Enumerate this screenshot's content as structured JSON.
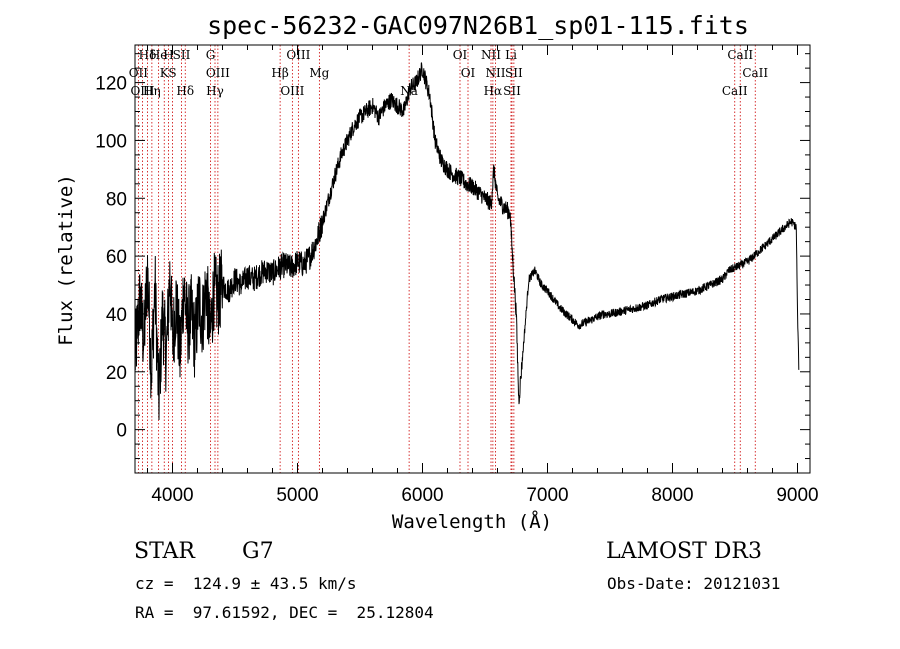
{
  "chart_data": {
    "type": "line",
    "title": "spec-56232-GAC097N26B1_sp01-115.fits",
    "xlabel": "Wavelength (Å)",
    "ylabel": "Flux (relative)",
    "xlim": [
      3700,
      9100
    ],
    "ylim": [
      -15,
      133
    ],
    "xticks": [
      4000,
      5000,
      6000,
      7000,
      8000,
      9000
    ],
    "yticks": [
      0,
      20,
      40,
      60,
      80,
      100,
      120
    ],
    "series": [
      {
        "name": "flux",
        "x": [
          3700,
          3740,
          3770,
          3800,
          3830,
          3860,
          3890,
          3920,
          3950,
          3980,
          4000,
          4030,
          4060,
          4090,
          4120,
          4150,
          4180,
          4210,
          4240,
          4270,
          4300,
          4330,
          4360,
          4400,
          4450,
          4500,
          4550,
          4600,
          4650,
          4700,
          4750,
          4800,
          4850,
          4900,
          4950,
          5000,
          5050,
          5100,
          5150,
          5200,
          5250,
          5300,
          5350,
          5400,
          5450,
          5500,
          5550,
          5600,
          5650,
          5700,
          5750,
          5800,
          5850,
          5900,
          5950,
          6000,
          6030,
          6060,
          6100,
          6150,
          6200,
          6250,
          6300,
          6350,
          6400,
          6450,
          6500,
          6550,
          6570,
          6600,
          6650,
          6700,
          6720,
          6750,
          6770,
          6800,
          6850,
          6900,
          6950,
          7000,
          7050,
          7100,
          7150,
          7200,
          7250,
          7300,
          7350,
          7400,
          7450,
          7500,
          7600,
          7700,
          7800,
          7900,
          8000,
          8100,
          8200,
          8300,
          8400,
          8450,
          8500,
          8550,
          8600,
          8650,
          8700,
          8750,
          8800,
          8850,
          8900,
          8950,
          8990,
          9000,
          9010
        ],
        "y": [
          25,
          45,
          30,
          55,
          20,
          50,
          10,
          40,
          25,
          55,
          30,
          45,
          25,
          50,
          35,
          40,
          30,
          45,
          38,
          50,
          32,
          48,
          45,
          50,
          48,
          52,
          50,
          53,
          52,
          54,
          55,
          54,
          56,
          57,
          56,
          58,
          57,
          60,
          65,
          72,
          80,
          88,
          95,
          100,
          105,
          108,
          110,
          112,
          108,
          112,
          114,
          112,
          110,
          118,
          120,
          125,
          120,
          115,
          100,
          93,
          90,
          88,
          87,
          85,
          84,
          82,
          80,
          78,
          90,
          80,
          77,
          75,
          60,
          40,
          10,
          25,
          52,
          55,
          50,
          48,
          45,
          42,
          40,
          38,
          36,
          37,
          38,
          39,
          40,
          40,
          41,
          42,
          43,
          45,
          46,
          47,
          48,
          50,
          52,
          55,
          56,
          57,
          58,
          60,
          62,
          64,
          66,
          68,
          70,
          72,
          70,
          40,
          22
        ]
      }
    ],
    "spectral_lines": [
      {
        "label": "Hδ",
        "x": 3800
      },
      {
        "label": "OII",
        "x": 3727
      },
      {
        "label": "OIII",
        "x": 3760
      },
      {
        "label": "He",
        "x": 3889
      },
      {
        "label": "K",
        "x": 3934
      },
      {
        "label": "Hη",
        "x": 3835
      },
      {
        "label": "H",
        "x": 3968
      },
      {
        "label": "S",
        "x": 4000
      },
      {
        "label": "Hδ",
        "x": 4102
      },
      {
        "label": "SII",
        "x": 4072
      },
      {
        "label": "OIII",
        "x": 4363
      },
      {
        "label": "Hγ",
        "x": 4340
      },
      {
        "label": "G",
        "x": 4304
      },
      {
        "label": "Hβ",
        "x": 4861
      },
      {
        "label": "OIII",
        "x": 4959
      },
      {
        "label": "OIII",
        "x": 5007
      },
      {
        "label": "Mg",
        "x": 5175
      },
      {
        "label": "Na",
        "x": 5893
      },
      {
        "label": "OI",
        "x": 6300
      },
      {
        "label": "OI",
        "x": 6364
      },
      {
        "label": "Hα",
        "x": 6563
      },
      {
        "label": "NII",
        "x": 6548
      },
      {
        "label": "NII",
        "x": 6584
      },
      {
        "label": "SII",
        "x": 6716
      },
      {
        "label": "Li",
        "x": 6708
      },
      {
        "label": "SII",
        "x": 6731
      },
      {
        "label": "CaII",
        "x": 8498
      },
      {
        "label": "CaII",
        "x": 8542
      },
      {
        "label": "CaII",
        "x": 8662
      }
    ]
  },
  "info": {
    "object_class": "STAR",
    "subclass": "G7",
    "survey": "LAMOST DR3",
    "redshift": "cz =  124.9 ± 43.5 km/s",
    "obs_date": "Obs-Date: 20121031",
    "coords": "RA =  97.61592, DEC =  25.12804"
  },
  "colors": {
    "line": "#000000",
    "marker": "#cc0000",
    "background": "#ffffff"
  }
}
